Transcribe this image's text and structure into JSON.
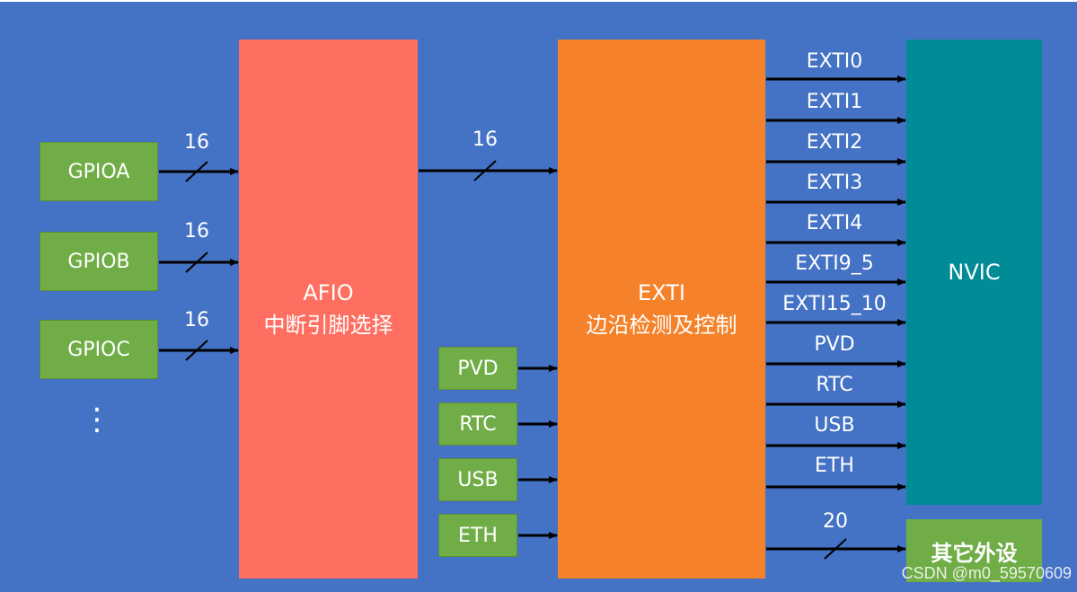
{
  "sources": {
    "gpioa": "GPIOA",
    "gpiob": "GPIOB",
    "gpioc": "GPIOC",
    "ellipsis": "⋮"
  },
  "bus": {
    "gpioa_width": "16",
    "gpiob_width": "16",
    "gpioc_width": "16",
    "afio_to_exti_width": "16",
    "other_width": "20"
  },
  "afio": {
    "title": "AFIO",
    "subtitle": "中断引脚选择"
  },
  "exti": {
    "title": "EXTI",
    "subtitle": "边沿检测及控制"
  },
  "extra_inputs": [
    "PVD",
    "RTC",
    "USB",
    "ETH"
  ],
  "outputs": [
    "EXTI0",
    "EXTI1",
    "EXTI2",
    "EXTI3",
    "EXTI4",
    "EXTI9_5",
    "EXTI15_10",
    "PVD",
    "RTC",
    "USB",
    "ETH"
  ],
  "nvic": {
    "label": "NVIC"
  },
  "other": {
    "label": "其它外设"
  },
  "watermark": "CSDN @m0_59570609",
  "colors": {
    "background": "#4472c4",
    "gpio_box": "#70ad47",
    "afio_box": "#ff6f61",
    "exti_box": "#f5822a",
    "nvic_box": "#008b96",
    "arrow": "#000000"
  }
}
